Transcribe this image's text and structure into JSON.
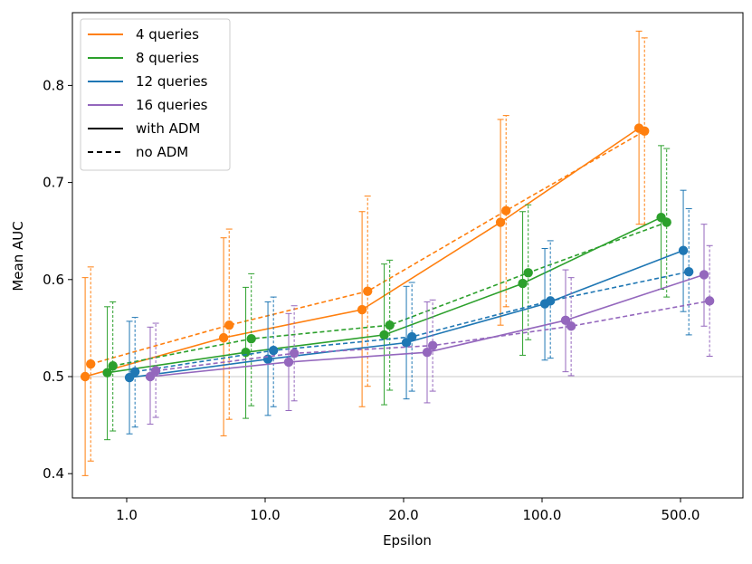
{
  "chart_data": {
    "type": "line",
    "title": "",
    "xlabel": "Epsilon",
    "ylabel": "Mean AUC",
    "ylim": [
      0.375,
      0.875
    ],
    "yticks": [
      0.4,
      0.5,
      0.6,
      0.7,
      0.8
    ],
    "ytick_labels": [
      "0.4",
      "0.5",
      "0.6",
      "0.7",
      "0.8"
    ],
    "categories": [
      "1.0",
      "10.0",
      "20.0",
      "100.0",
      "500.0"
    ],
    "reference_line": 0.5,
    "colors": {
      "4 queries": "#ff7f0e",
      "8 queries": "#2ca02c",
      "12 queries": "#1f77b4",
      "16 queries": "#9467bd"
    },
    "legend": {
      "placement": "top-left",
      "entries": [
        {
          "label": "4 queries",
          "kind": "color",
          "color": "#ff7f0e"
        },
        {
          "label": "8 queries",
          "kind": "color",
          "color": "#2ca02c"
        },
        {
          "label": "12 queries",
          "kind": "color",
          "color": "#1f77b4"
        },
        {
          "label": "16 queries",
          "kind": "color",
          "color": "#9467bd"
        },
        {
          "label": "with ADM",
          "kind": "solid",
          "color": "#000000"
        },
        {
          "label": "no ADM",
          "kind": "dashed",
          "color": "#000000"
        }
      ]
    },
    "series": [
      {
        "name": "4 queries",
        "adm": "with ADM",
        "color": "#ff7f0e",
        "dashed": false,
        "offset": -0.3,
        "values": [
          0.5,
          0.54,
          0.569,
          0.659,
          0.756
        ],
        "lower": [
          0.398,
          0.439,
          0.469,
          0.553,
          0.657
        ],
        "upper": [
          0.602,
          0.643,
          0.67,
          0.765,
          0.856
        ]
      },
      {
        "name": "4 queries",
        "adm": "no ADM",
        "color": "#ff7f0e",
        "dashed": true,
        "offset": -0.26,
        "values": [
          0.513,
          0.553,
          0.588,
          0.671,
          0.753
        ],
        "lower": [
          0.413,
          0.456,
          0.49,
          0.572,
          0.657
        ],
        "upper": [
          0.613,
          0.652,
          0.686,
          0.769,
          0.849
        ]
      },
      {
        "name": "8 queries",
        "adm": "with ADM",
        "color": "#2ca02c",
        "dashed": false,
        "offset": -0.14,
        "values": [
          0.504,
          0.525,
          0.543,
          0.596,
          0.664
        ],
        "lower": [
          0.435,
          0.457,
          0.471,
          0.522,
          0.59
        ],
        "upper": [
          0.572,
          0.592,
          0.616,
          0.67,
          0.738
        ]
      },
      {
        "name": "8 queries",
        "adm": "no ADM",
        "color": "#2ca02c",
        "dashed": true,
        "offset": -0.1,
        "values": [
          0.511,
          0.539,
          0.553,
          0.607,
          0.659
        ],
        "lower": [
          0.444,
          0.47,
          0.486,
          0.538,
          0.582
        ],
        "upper": [
          0.577,
          0.606,
          0.62,
          0.677,
          0.735
        ]
      },
      {
        "name": "12 queries",
        "adm": "with ADM",
        "color": "#1f77b4",
        "dashed": false,
        "offset": 0.02,
        "values": [
          0.499,
          0.518,
          0.535,
          0.575,
          0.63
        ],
        "lower": [
          0.441,
          0.46,
          0.477,
          0.517,
          0.567
        ],
        "upper": [
          0.557,
          0.577,
          0.593,
          0.632,
          0.692
        ]
      },
      {
        "name": "12 queries",
        "adm": "no ADM",
        "color": "#1f77b4",
        "dashed": true,
        "offset": 0.06,
        "values": [
          0.505,
          0.527,
          0.541,
          0.578,
          0.608
        ],
        "lower": [
          0.448,
          0.469,
          0.485,
          0.519,
          0.543
        ],
        "upper": [
          0.561,
          0.582,
          0.597,
          0.64,
          0.673
        ]
      },
      {
        "name": "16 queries",
        "adm": "with ADM",
        "color": "#9467bd",
        "dashed": false,
        "offset": 0.17,
        "values": [
          0.5,
          0.515,
          0.525,
          0.558,
          0.605
        ],
        "lower": [
          0.451,
          0.465,
          0.473,
          0.505,
          0.552
        ],
        "upper": [
          0.551,
          0.565,
          0.577,
          0.61,
          0.657
        ]
      },
      {
        "name": "16 queries",
        "adm": "no ADM",
        "color": "#9467bd",
        "dashed": true,
        "offset": 0.21,
        "values": [
          0.506,
          0.524,
          0.532,
          0.552,
          0.578
        ],
        "lower": [
          0.458,
          0.475,
          0.485,
          0.501,
          0.521
        ],
        "upper": [
          0.555,
          0.573,
          0.579,
          0.602,
          0.635
        ]
      }
    ]
  }
}
